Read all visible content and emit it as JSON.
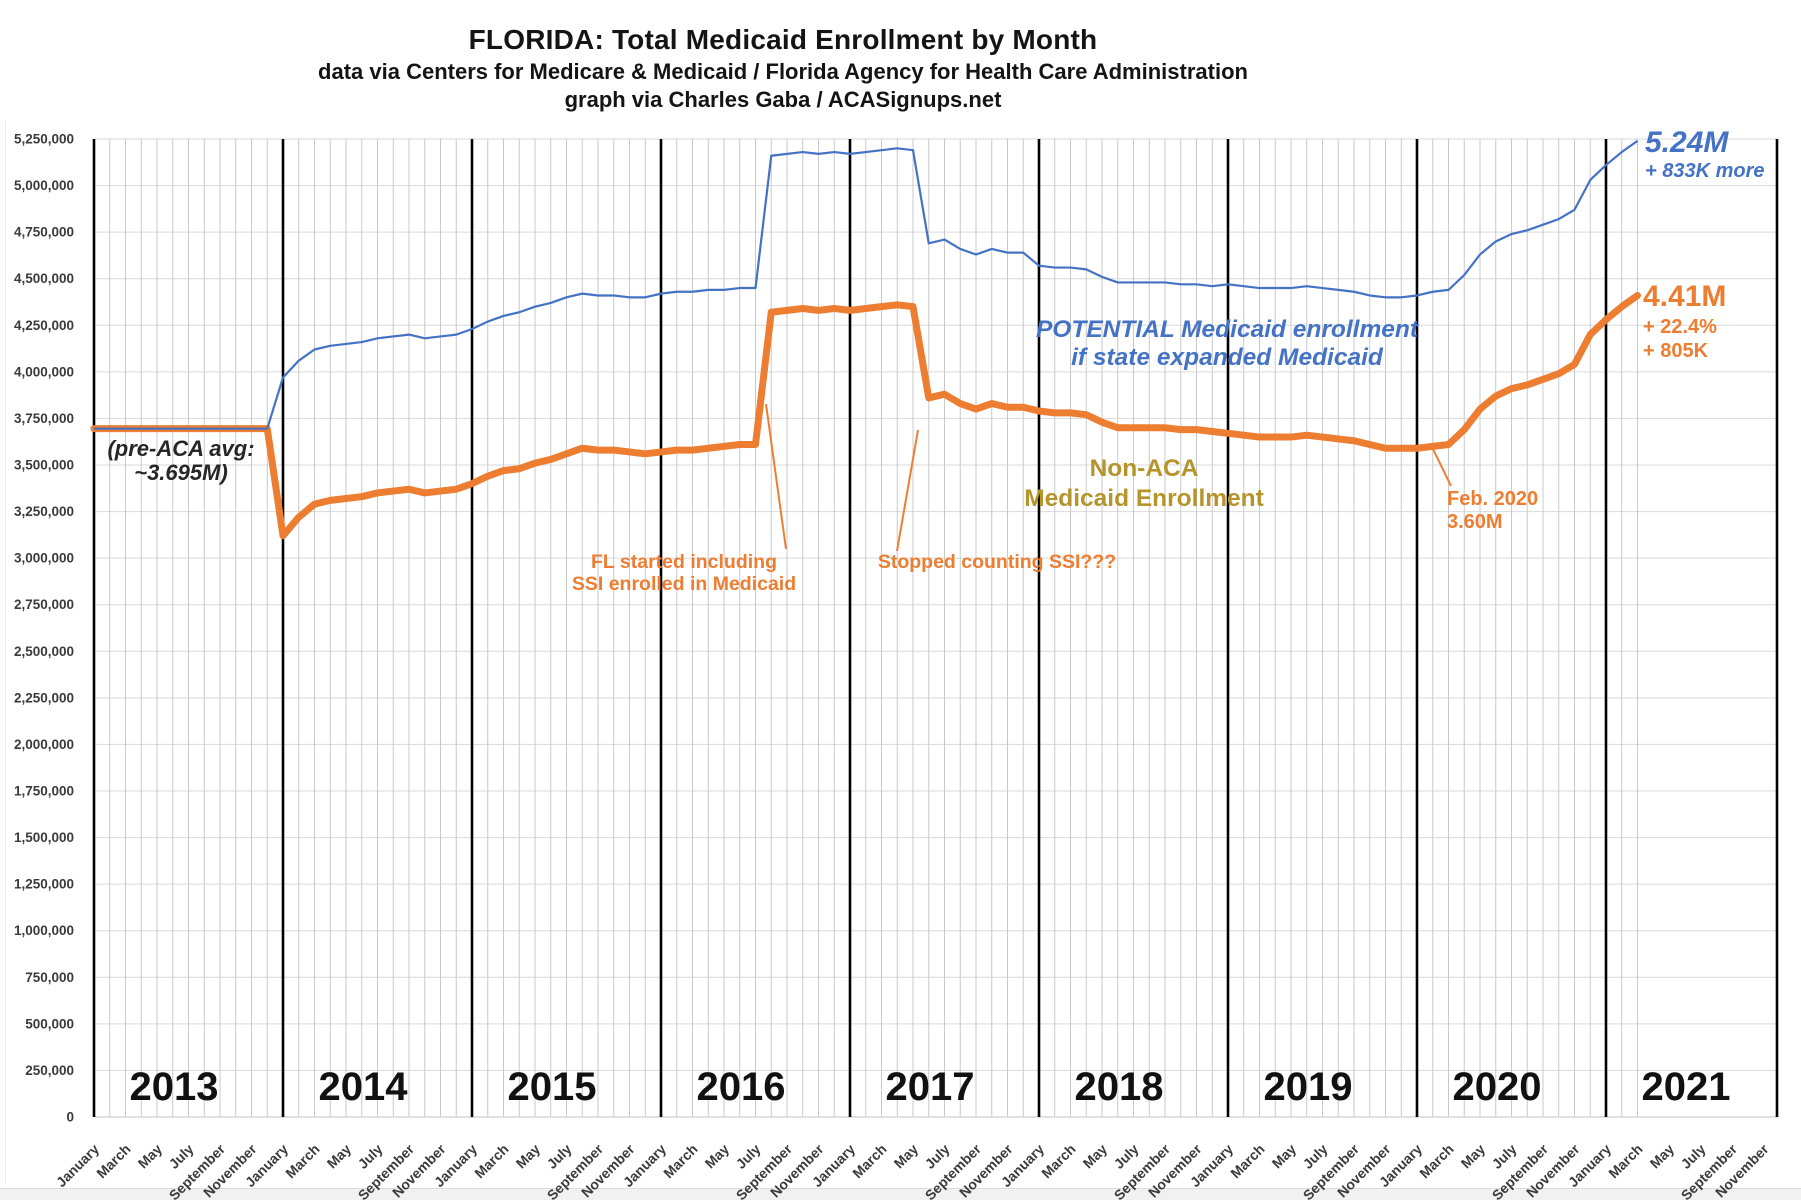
{
  "header": {
    "title": "FLORIDA: Total Medicaid Enrollment by Month",
    "subtitle1": "data via Centers for Medicare & Medicaid / Florida Agency for Health Care Administration",
    "subtitle2": "graph via Charles Gaba / ACASignups.net"
  },
  "colors": {
    "actual_orange": "#ED7D31",
    "potential_blue": "#4472C4",
    "olive_label": "#B5942B",
    "axis_text": "#3a3a3a",
    "annotation_dark": "#262626"
  },
  "chart_data": {
    "type": "line",
    "title": "FLORIDA: Total Medicaid Enrollment by Month",
    "x": {
      "start": "2013-01",
      "data_end": "2021-03",
      "axis_end": "2021-12",
      "years": [
        2013,
        2014,
        2015,
        2016,
        2017,
        2018,
        2019,
        2020,
        2021
      ],
      "month_tick_labels": [
        "January",
        "March",
        "May",
        "July",
        "September",
        "November"
      ]
    },
    "y": {
      "min": 0,
      "max": 5250000,
      "step": 250000,
      "tick_labels": [
        "0",
        "250,000",
        "500,000",
        "750,000",
        "1,000,000",
        "1,250,000",
        "1,500,000",
        "1,750,000",
        "2,000,000",
        "2,250,000",
        "2,500,000",
        "2,750,000",
        "3,000,000",
        "3,250,000",
        "3,500,000",
        "3,750,000",
        "4,000,000",
        "4,250,000",
        "4,500,000",
        "4,750,000",
        "5,000,000",
        "5,250,000"
      ],
      "grid": true
    },
    "series": [
      {
        "id": "actual",
        "name": "Non-ACA Medicaid Enrollment",
        "color": "#ED7D31",
        "unit": "millions",
        "values": [
          3.695,
          3.695,
          3.695,
          3.695,
          3.695,
          3.695,
          3.695,
          3.695,
          3.695,
          3.695,
          3.695,
          3.695,
          3.12,
          3.22,
          3.29,
          3.31,
          3.32,
          3.33,
          3.35,
          3.36,
          3.37,
          3.35,
          3.36,
          3.37,
          3.4,
          3.44,
          3.47,
          3.48,
          3.51,
          3.53,
          3.56,
          3.59,
          3.58,
          3.58,
          3.57,
          3.56,
          3.57,
          3.58,
          3.58,
          3.59,
          3.6,
          3.61,
          3.61,
          4.32,
          4.33,
          4.34,
          4.33,
          4.34,
          4.33,
          4.34,
          4.35,
          4.36,
          4.35,
          3.86,
          3.88,
          3.83,
          3.8,
          3.83,
          3.81,
          3.81,
          3.79,
          3.78,
          3.78,
          3.77,
          3.73,
          3.7,
          3.7,
          3.7,
          3.7,
          3.69,
          3.69,
          3.68,
          3.67,
          3.66,
          3.65,
          3.65,
          3.65,
          3.66,
          3.65,
          3.64,
          3.63,
          3.61,
          3.59,
          3.59,
          3.59,
          3.6,
          3.61,
          3.69,
          3.8,
          3.87,
          3.91,
          3.93,
          3.96,
          3.99,
          4.04,
          4.2,
          4.28,
          4.35,
          4.41
        ]
      },
      {
        "id": "potential",
        "name": "POTENTIAL Medicaid enrollment if state expanded Medicaid",
        "color": "#4472C4",
        "unit": "millions",
        "values": [
          3.695,
          3.695,
          3.695,
          3.695,
          3.695,
          3.695,
          3.695,
          3.695,
          3.695,
          3.695,
          3.695,
          3.695,
          3.97,
          4.06,
          4.12,
          4.14,
          4.15,
          4.16,
          4.18,
          4.19,
          4.2,
          4.18,
          4.19,
          4.2,
          4.23,
          4.27,
          4.3,
          4.32,
          4.35,
          4.37,
          4.4,
          4.42,
          4.41,
          4.41,
          4.4,
          4.4,
          4.42,
          4.43,
          4.43,
          4.44,
          4.44,
          4.45,
          4.45,
          5.16,
          5.17,
          5.18,
          5.17,
          5.18,
          5.17,
          5.18,
          5.19,
          5.2,
          5.19,
          4.69,
          4.71,
          4.66,
          4.63,
          4.66,
          4.64,
          4.64,
          4.57,
          4.56,
          4.56,
          4.55,
          4.51,
          4.48,
          4.48,
          4.48,
          4.48,
          4.47,
          4.47,
          4.46,
          4.47,
          4.46,
          4.45,
          4.45,
          4.45,
          4.46,
          4.45,
          4.44,
          4.43,
          4.41,
          4.4,
          4.4,
          4.41,
          4.43,
          4.44,
          4.52,
          4.63,
          4.7,
          4.74,
          4.76,
          4.79,
          4.82,
          4.87,
          5.03,
          5.11,
          5.18,
          5.24
        ]
      }
    ],
    "annotations": {
      "pre_aca": {
        "lines": [
          "(pre-ACA avg:",
          "~3.695M)"
        ]
      },
      "fl_ssi": {
        "lines": [
          "FL started including",
          "SSI enrolled in Medicaid"
        ]
      },
      "stopped_ssi": {
        "lines": [
          "Stopped counting SSI???"
        ]
      },
      "potential_label": {
        "lines": [
          "POTENTIAL Medicaid enrollment",
          "if state expanded Medicaid"
        ]
      },
      "non_aca_label": {
        "lines": [
          "Non-ACA",
          "Medicaid Enrollment"
        ]
      },
      "feb_2020": {
        "lines": [
          "Feb. 2020",
          "3.60M"
        ]
      },
      "potential_end": {
        "lines": [
          "5.24M",
          "+ 833K more"
        ]
      },
      "actual_end": {
        "lines": [
          "4.41M",
          "+ 22.4%",
          "+ 805K"
        ]
      }
    },
    "legend_position": "none"
  }
}
